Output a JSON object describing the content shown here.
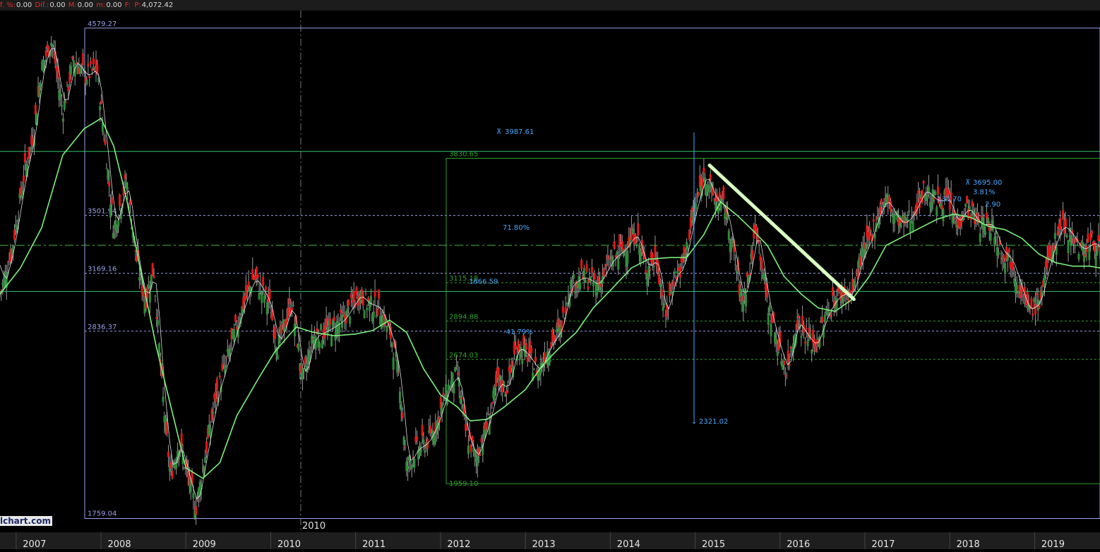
{
  "topbar": {
    "items": [
      {
        "label": "f. %:",
        "value": "0.00"
      },
      {
        "label": "Dif.:",
        "value": "0.00"
      },
      {
        "label": "M:",
        "value": "0.00"
      },
      {
        "label": "m:",
        "value": "0.00"
      },
      {
        "label": "F:",
        "value": ""
      },
      {
        "label": "P:",
        "value": "4,072.42"
      }
    ]
  },
  "watermark": "lchart.com",
  "cursor_label": "2010",
  "colors": {
    "background": "#000000",
    "up_candle": "#2e8b3a",
    "down_candle": "#e01818",
    "ma_long": "#7cf07c",
    "ma_short": "#ffffff",
    "box_lavender": "#9aa0e8",
    "box_green": "#2ea02e",
    "measure": "#4aa8ff",
    "trendline": "#d8ffc0"
  },
  "chart_data": {
    "type": "candlestick",
    "x_unit": "year",
    "xlim": [
      2006.81,
      2019.77
    ],
    "ylim": [
      1680,
      4680
    ],
    "xticks": [
      "2007",
      "2008",
      "2009",
      "2010",
      "2011",
      "2012",
      "2013",
      "2014",
      "2015",
      "2016",
      "2017",
      "2018",
      "2019"
    ],
    "price_path": [
      [
        2006.81,
        3050
      ],
      [
        2006.95,
        3300
      ],
      [
        2007.1,
        3750
      ],
      [
        2007.2,
        3950
      ],
      [
        2007.3,
        4350
      ],
      [
        2007.42,
        4510
      ],
      [
        2007.55,
        4100
      ],
      [
        2007.68,
        4400
      ],
      [
        2007.82,
        4300
      ],
      [
        2007.95,
        4350
      ],
      [
        2008.05,
        3900
      ],
      [
        2008.15,
        3420
      ],
      [
        2008.3,
        3700
      ],
      [
        2008.42,
        3250
      ],
      [
        2008.52,
        3000
      ],
      [
        2008.62,
        3200
      ],
      [
        2008.72,
        2500
      ],
      [
        2008.82,
        2000
      ],
      [
        2008.92,
        2200
      ],
      [
        2009.02,
        2000
      ],
      [
        2009.12,
        1820
      ],
      [
        2009.2,
        2050
      ],
      [
        2009.35,
        2450
      ],
      [
        2009.5,
        2700
      ],
      [
        2009.65,
        2950
      ],
      [
        2009.8,
        3150
      ],
      [
        2009.98,
        3000
      ],
      [
        2010.08,
        2750
      ],
      [
        2010.25,
        3000
      ],
      [
        2010.38,
        2550
      ],
      [
        2010.5,
        2800
      ],
      [
        2010.7,
        2850
      ],
      [
        2010.85,
        2900
      ],
      [
        2011.05,
        3050
      ],
      [
        2011.12,
        3000
      ],
      [
        2011.28,
        2970
      ],
      [
        2011.42,
        2800
      ],
      [
        2011.52,
        2550
      ],
      [
        2011.6,
        2050
      ],
      [
        2011.7,
        2150
      ],
      [
        2011.85,
        2200
      ],
      [
        2011.95,
        2300
      ],
      [
        2012.08,
        2500
      ],
      [
        2012.2,
        2600
      ],
      [
        2012.3,
        2250
      ],
      [
        2012.42,
        2100
      ],
      [
        2012.55,
        2300
      ],
      [
        2012.68,
        2550
      ],
      [
        2012.78,
        2500
      ],
      [
        2012.9,
        2750
      ],
      [
        2013.02,
        2700
      ],
      [
        2013.15,
        2600
      ],
      [
        2013.28,
        2750
      ],
      [
        2013.42,
        2850
      ],
      [
        2013.52,
        3100
      ],
      [
        2013.68,
        3150
      ],
      [
        2013.85,
        3100
      ],
      [
        2014.02,
        3250
      ],
      [
        2014.15,
        3300
      ],
      [
        2014.3,
        3400
      ],
      [
        2014.42,
        3200
      ],
      [
        2014.55,
        3250
      ],
      [
        2014.65,
        2900
      ],
      [
        2014.75,
        3150
      ],
      [
        2014.85,
        3200
      ],
      [
        2015.0,
        3550
      ],
      [
        2015.12,
        3750
      ],
      [
        2015.22,
        3600
      ],
      [
        2015.35,
        3550
      ],
      [
        2015.45,
        3300
      ],
      [
        2015.55,
        3000
      ],
      [
        2015.65,
        3200
      ],
      [
        2015.72,
        3450
      ],
      [
        2015.85,
        3000
      ],
      [
        2015.98,
        2750
      ],
      [
        2016.08,
        2600
      ],
      [
        2016.2,
        2900
      ],
      [
        2016.32,
        2800
      ],
      [
        2016.42,
        2750
      ],
      [
        2016.52,
        2900
      ],
      [
        2016.62,
        3000
      ],
      [
        2016.72,
        3050
      ],
      [
        2016.85,
        3050
      ],
      [
        2016.95,
        3250
      ],
      [
        2017.05,
        3350
      ],
      [
        2017.15,
        3500
      ],
      [
        2017.25,
        3600
      ],
      [
        2017.35,
        3500
      ],
      [
        2017.45,
        3450
      ],
      [
        2017.55,
        3500
      ],
      [
        2017.7,
        3650
      ],
      [
        2017.85,
        3580
      ],
      [
        2017.98,
        3600
      ],
      [
        2018.08,
        3450
      ],
      [
        2018.2,
        3550
      ],
      [
        2018.35,
        3450
      ],
      [
        2018.5,
        3450
      ],
      [
        2018.6,
        3300
      ],
      [
        2018.72,
        3250
      ],
      [
        2018.82,
        3100
      ],
      [
        2018.92,
        2950
      ],
      [
        2019.05,
        3000
      ],
      [
        2019.2,
        3300
      ],
      [
        2019.32,
        3450
      ],
      [
        2019.42,
        3400
      ],
      [
        2019.55,
        3300
      ],
      [
        2019.7,
        3350
      ],
      [
        2019.77,
        3300
      ]
    ],
    "ma_long": [
      [
        2006.81,
        3050
      ],
      [
        2007.05,
        3200
      ],
      [
        2007.3,
        3430
      ],
      [
        2007.55,
        3850
      ],
      [
        2007.8,
        4000
      ],
      [
        2008.0,
        4060
      ],
      [
        2008.15,
        3900
      ],
      [
        2008.3,
        3600
      ],
      [
        2008.5,
        3100
      ],
      [
        2008.65,
        2750
      ],
      [
        2008.85,
        2350
      ],
      [
        2009.0,
        2050
      ],
      [
        2009.2,
        1990
      ],
      [
        2009.4,
        2080
      ],
      [
        2009.6,
        2350
      ],
      [
        2009.85,
        2560
      ],
      [
        2010.05,
        2720
      ],
      [
        2010.3,
        2860
      ],
      [
        2010.5,
        2830
      ],
      [
        2010.75,
        2810
      ],
      [
        2011.0,
        2820
      ],
      [
        2011.2,
        2840
      ],
      [
        2011.4,
        2900
      ],
      [
        2011.6,
        2830
      ],
      [
        2011.8,
        2620
      ],
      [
        2012.0,
        2470
      ],
      [
        2012.2,
        2400
      ],
      [
        2012.35,
        2320
      ],
      [
        2012.55,
        2330
      ],
      [
        2012.75,
        2400
      ],
      [
        2013.0,
        2500
      ],
      [
        2013.2,
        2640
      ],
      [
        2013.4,
        2740
      ],
      [
        2013.6,
        2830
      ],
      [
        2013.8,
        2970
      ],
      [
        2014.0,
        3070
      ],
      [
        2014.25,
        3200
      ],
      [
        2014.45,
        3250
      ],
      [
        2014.7,
        3260
      ],
      [
        2014.9,
        3260
      ],
      [
        2015.1,
        3390
      ],
      [
        2015.3,
        3580
      ],
      [
        2015.5,
        3500
      ],
      [
        2015.65,
        3430
      ],
      [
        2015.85,
        3330
      ],
      [
        2016.05,
        3150
      ],
      [
        2016.25,
        3050
      ],
      [
        2016.45,
        2970
      ],
      [
        2016.65,
        2950
      ],
      [
        2016.85,
        3020
      ],
      [
        2017.05,
        3150
      ],
      [
        2017.25,
        3330
      ],
      [
        2017.45,
        3380
      ],
      [
        2017.65,
        3430
      ],
      [
        2017.85,
        3480
      ],
      [
        2018.05,
        3510
      ],
      [
        2018.25,
        3490
      ],
      [
        2018.45,
        3440
      ],
      [
        2018.65,
        3420
      ],
      [
        2018.85,
        3370
      ],
      [
        2019.05,
        3280
      ],
      [
        2019.25,
        3230
      ],
      [
        2019.45,
        3210
      ],
      [
        2019.65,
        3210
      ],
      [
        2019.77,
        3200
      ]
    ],
    "levels": {
      "box1_high": 4579.27,
      "box1_low": 1759.04,
      "box1_mid_labels": [
        3501.94,
        3169.16,
        2836.37
      ],
      "box2_high": 3830.65,
      "box2_low": 1959.1,
      "box2_mid_labels": [
        3115.18,
        2894.88,
        2674.03
      ],
      "measure_top": 3987.61,
      "measure_bottom": 2321.02,
      "measure_pct_up": "71.80%",
      "measure_pct_down": "-41.79%",
      "measure_diff": "1666.59",
      "peak_2018_label": "3695.00",
      "small_labels": [
        "135.70",
        "3.81%",
        "2.90"
      ]
    }
  }
}
